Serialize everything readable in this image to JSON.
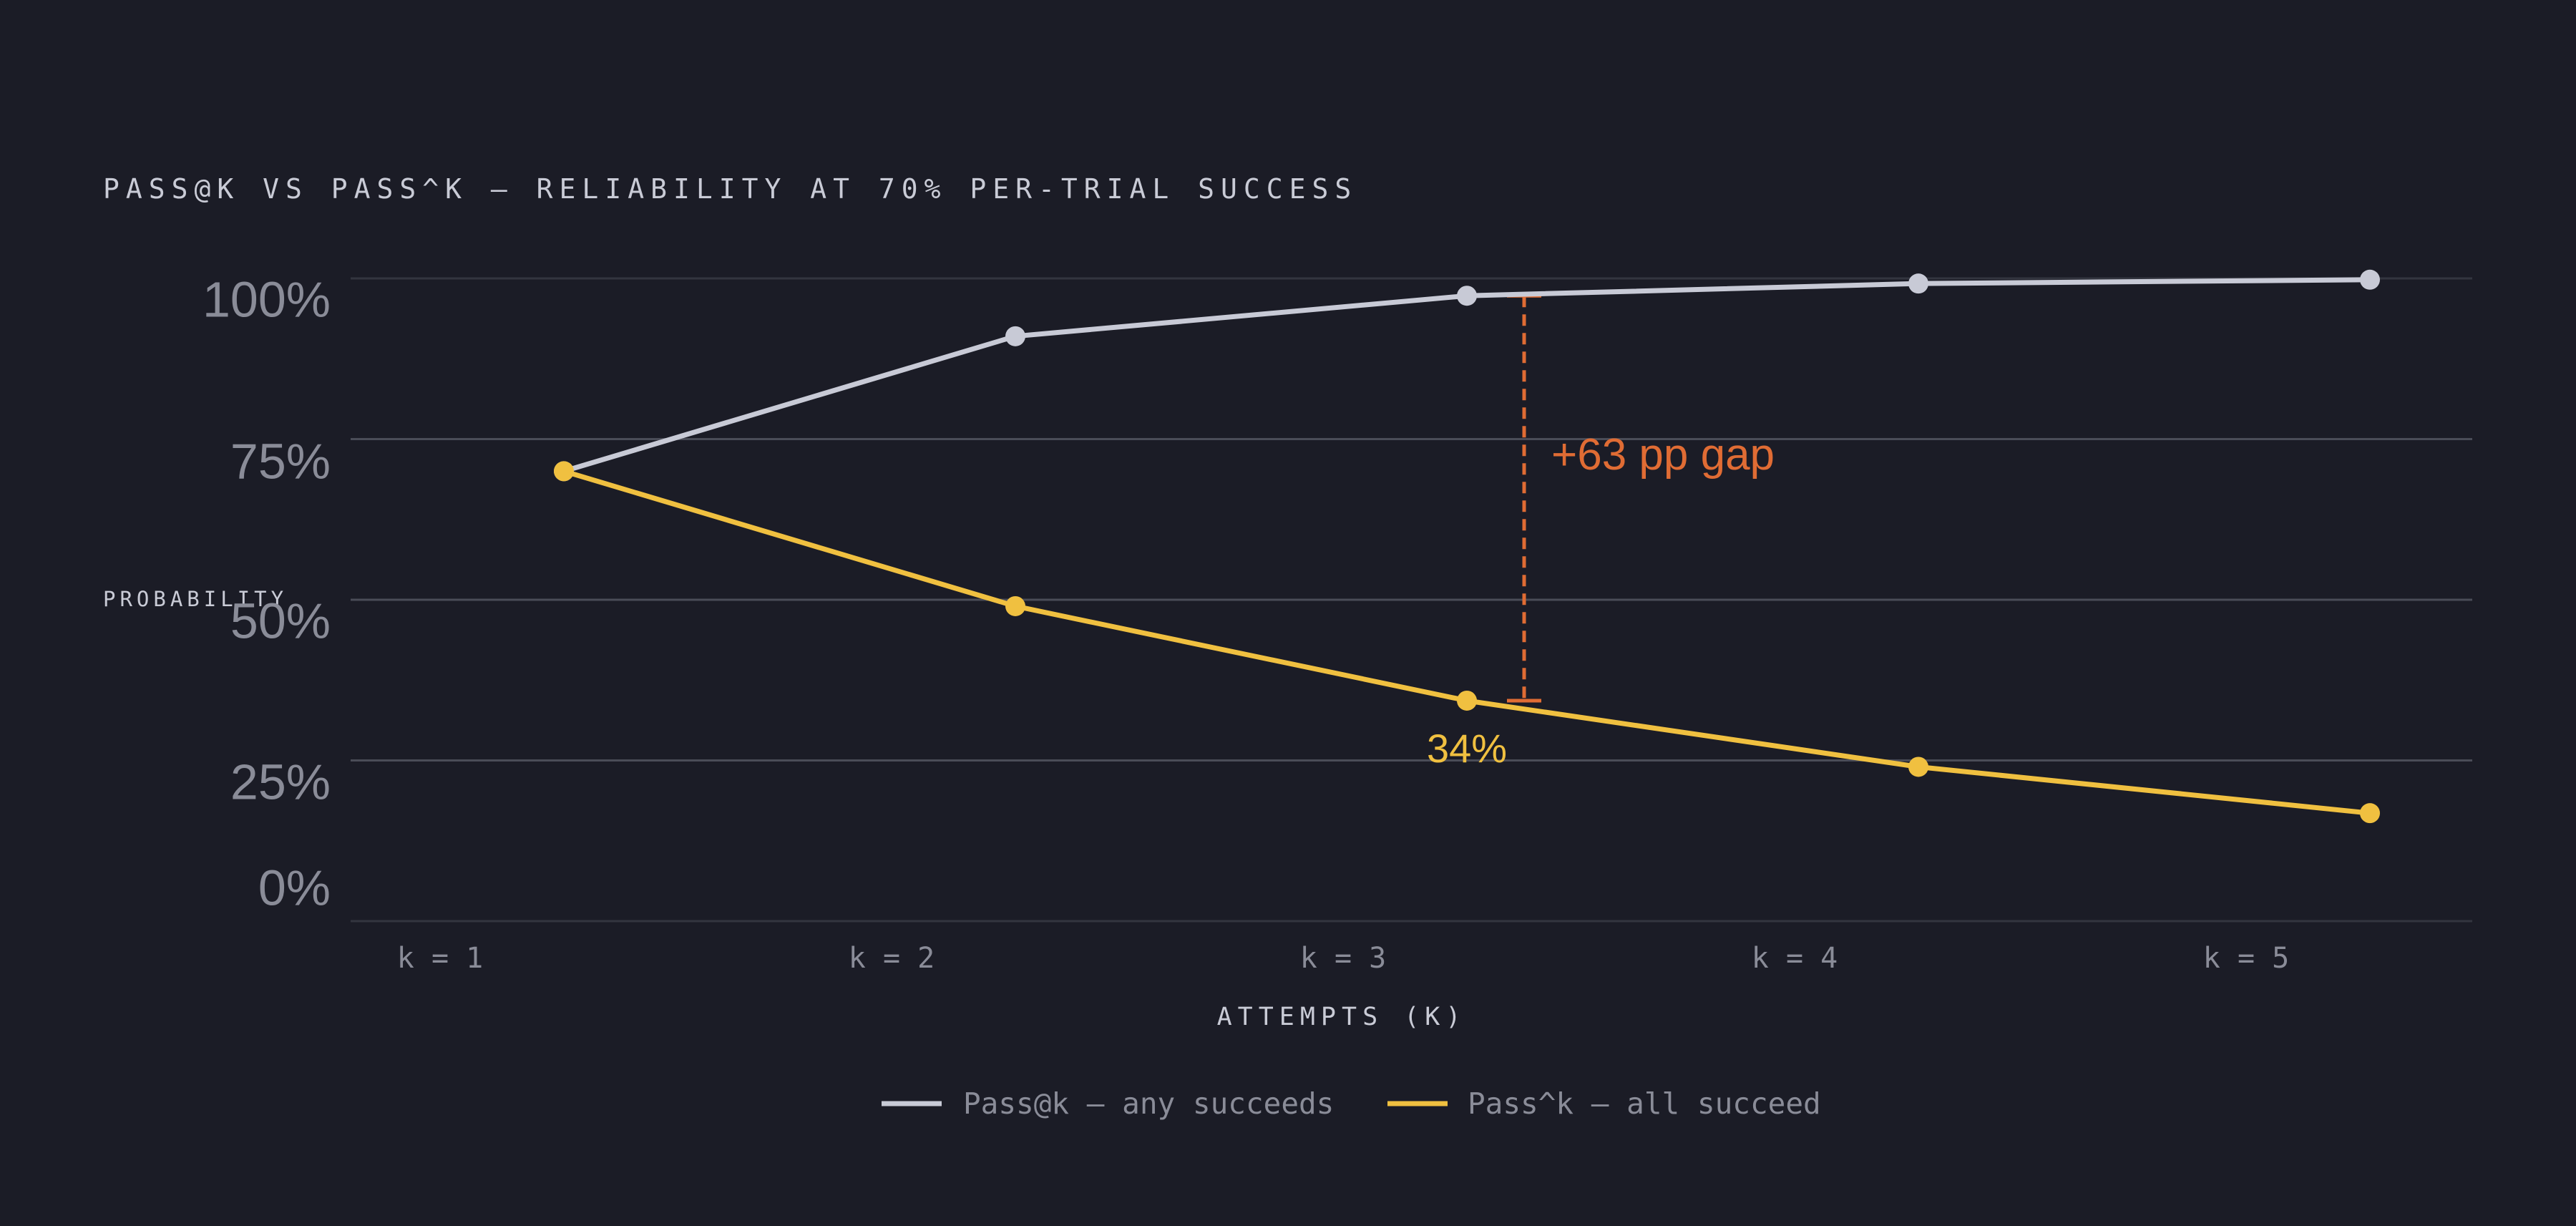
{
  "chart_data": {
    "type": "line",
    "title": "PASS@K VS PASS^K — RELIABILITY AT 70% PER-TRIAL SUCCESS",
    "xlabel": "ATTEMPTS (K)",
    "ylabel": "PROBABILITY",
    "categories": [
      "k = 1",
      "k = 2",
      "k = 3",
      "k = 4",
      "k = 5"
    ],
    "y_ticks": [
      {
        "value": 100,
        "label": "100%"
      },
      {
        "value": 75,
        "label": "75%"
      },
      {
        "value": 50,
        "label": "50%"
      },
      {
        "value": 25,
        "label": "25%"
      },
      {
        "value": 0,
        "label": "0%"
      }
    ],
    "ylim": [
      0,
      100
    ],
    "grid": true,
    "legend_position": "bottom-center",
    "series": [
      {
        "name": "Pass@k — any succeeds",
        "color": "#c8cad6",
        "values": [
          70,
          91,
          97.3,
          99.2,
          99.8
        ]
      },
      {
        "name": "Pass^k — all succeed",
        "color": "#f0c040",
        "values": [
          70,
          49,
          34.3,
          24,
          16.8
        ]
      }
    ],
    "annotations": [
      {
        "text": "+63 pp gap",
        "category_index": 2,
        "color": "#e06c34"
      },
      {
        "text": "34%",
        "category_index": 2,
        "series_index": 1,
        "color": "#f0c040"
      }
    ]
  }
}
